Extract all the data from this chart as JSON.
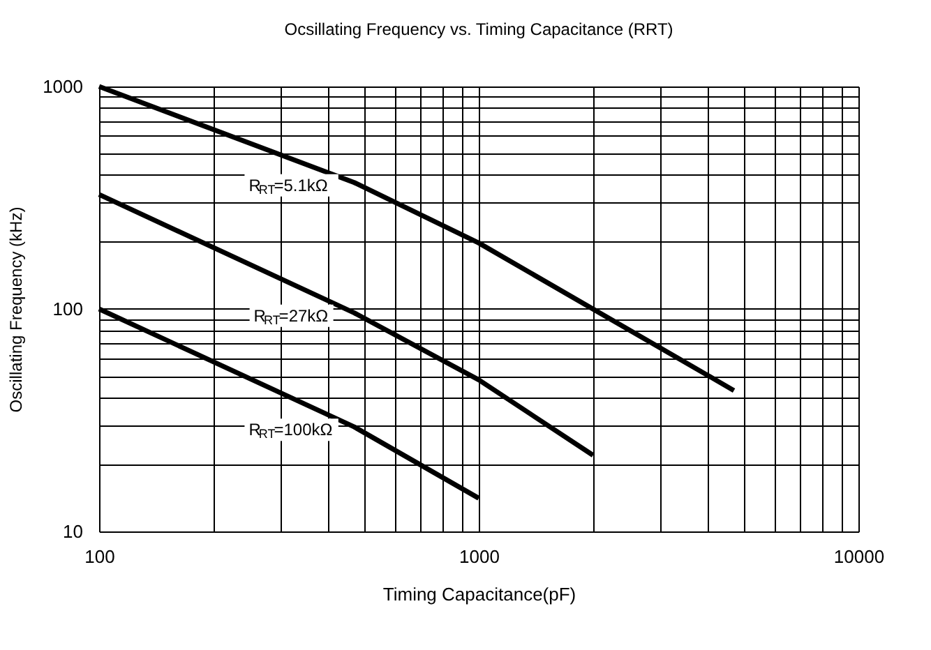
{
  "chart_data": {
    "type": "line",
    "title": "Ocsillating Frequency vs. Timing Capacitance (RRT)",
    "xlabel": "Timing Capacitance(pF)",
    "ylabel": "Oscillating Frequency (kHz)",
    "log": "xy",
    "grid": true,
    "marker": "none",
    "line_style": "solid",
    "xlim": [
      100,
      10000
    ],
    "ylim": [
      10,
      1000
    ],
    "xticks": [
      100,
      {
        "value": 200,
        "label": null
      },
      {
        "value": 300,
        "label": null
      },
      {
        "value": 400,
        "label": null
      },
      {
        "value": 500,
        "label": null
      },
      {
        "value": 600,
        "label": null
      },
      {
        "value": 700,
        "label": null
      },
      {
        "value": 800,
        "label": null
      },
      {
        "value": 900,
        "label": null
      },
      1000,
      {
        "value": 2000,
        "label": null
      },
      {
        "value": 3000,
        "label": null
      },
      {
        "value": 4000,
        "label": null
      },
      {
        "value": 5000,
        "label": null
      },
      {
        "value": 6000,
        "label": null
      },
      {
        "value": 7000,
        "label": null
      },
      {
        "value": 8000,
        "label": null
      },
      {
        "value": 9000,
        "label": null
      },
      10000
    ],
    "yticks": [
      10,
      {
        "value": 20,
        "label": null
      },
      {
        "value": 30,
        "label": null
      },
      {
        "value": 40,
        "label": null
      },
      {
        "value": 50,
        "label": null
      },
      {
        "value": 60,
        "label": null
      },
      {
        "value": 70,
        "label": null
      },
      {
        "value": 80,
        "label": null
      },
      {
        "value": 90,
        "label": null
      },
      100,
      {
        "value": 200,
        "label": null
      },
      {
        "value": 300,
        "label": null
      },
      {
        "value": 400,
        "label": null
      },
      {
        "value": 500,
        "label": null
      },
      {
        "value": 600,
        "label": null
      },
      {
        "value": 700,
        "label": null
      },
      {
        "value": 800,
        "label": null
      },
      {
        "value": 900,
        "label": null
      },
      1000
    ],
    "series": [
      {
        "name": "R$_{RT}$=5.1kΩ",
        "color": "#000000",
        "x": [
          100,
          470,
          1000,
          4700
        ],
        "values": [
          1000,
          370,
          198,
          43
        ]
      },
      {
        "name": "R$_{RT}$=27kΩ",
        "color": "#000000",
        "x": [
          100,
          470,
          1000,
          2000
        ],
        "values": [
          327,
          96,
          48,
          22
        ]
      },
      {
        "name": "R$_{RT}$=100kΩ",
        "color": "#000000",
        "x": [
          100,
          470,
          1000
        ],
        "values": [
          100,
          29.5,
          14.1
        ]
      }
    ]
  }
}
